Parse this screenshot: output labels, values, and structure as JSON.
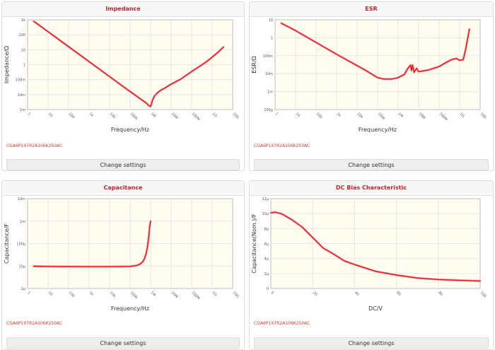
{
  "panels": [
    {
      "title": "Impedance",
      "part_number": "CGA6P1X7R2A106K250AC",
      "button_label": "Change settings"
    },
    {
      "title": "ESR",
      "part_number": "CGA6P1X7R2A106K250AC",
      "button_label": "Change settings"
    },
    {
      "title": "Capacitance",
      "part_number": "CGA6P1X7R2A106K250AC",
      "button_label": "Change settings"
    },
    {
      "title": "DC Bias Characteristic",
      "part_number": "CGA6P1X7R2A106K250AC",
      "button_label": "Change settings"
    }
  ],
  "colors": {
    "line": "#e8161e",
    "plot_bg": "#fffdf0",
    "grid": "#e6e6e6",
    "title": "#c0262f"
  },
  "chart_data": [
    {
      "type": "line",
      "title": "Impedance",
      "xlabel": "Frequency/Hz",
      "ylabel": "Impedance/Ω",
      "xscale": "log",
      "yscale": "log",
      "xlim": [
        1,
        10000000000
      ],
      "ylim": [
        0.001,
        1000
      ],
      "x_ticks": [
        1,
        10,
        100,
        1000,
        10000,
        100000,
        1000000,
        10000000,
        100000000,
        1000000000,
        10000000000
      ],
      "x_tick_labels": [
        "1",
        "10",
        "100",
        "1k",
        "10k",
        "100k",
        "1M",
        "10M",
        "100M",
        "1G",
        "10G"
      ],
      "y_ticks": [
        0.001,
        0.01,
        0.1,
        1,
        10,
        100,
        1000
      ],
      "y_tick_labels": [
        "1m",
        "10m",
        "100m",
        "1",
        "10",
        "100",
        "1k"
      ],
      "grid": true,
      "series": [
        {
          "x": [
            2,
            10,
            100,
            1000,
            10000,
            100000,
            300000,
            600000,
            800000,
            1000000,
            1100000,
            1300000,
            1600000,
            2000000,
            3000000,
            5000000,
            10000000,
            30000000,
            100000000,
            500000000,
            1000000000,
            2000000000,
            3500000000
          ],
          "y": [
            800,
            160,
            16,
            1.6,
            0.16,
            0.016,
            0.0055,
            0.0028,
            0.0019,
            0.0016,
            0.0025,
            0.005,
            0.0085,
            0.012,
            0.019,
            0.028,
            0.05,
            0.11,
            0.35,
            1.5,
            3.2,
            7,
            15
          ]
        }
      ]
    },
    {
      "type": "line",
      "title": "ESR",
      "xlabel": "Frequency/Hz",
      "ylabel": "ESR/Ω",
      "xscale": "log",
      "yscale": "log",
      "xlim": [
        1,
        10000000000
      ],
      "ylim": [
        0.0001,
        10
      ],
      "x_ticks": [
        1,
        10,
        100,
        1000,
        10000,
        100000,
        1000000,
        10000000,
        100000000,
        1000000000,
        10000000000
      ],
      "x_tick_labels": [
        "1",
        "10",
        "100",
        "1k",
        "10k",
        "100k",
        "1M",
        "10M",
        "100M",
        "1G",
        "10G"
      ],
      "y_ticks": [
        0.0001,
        0.001,
        0.01,
        0.1,
        1,
        10
      ],
      "y_tick_labels": [
        "100μ",
        "1m",
        "10m",
        "100m",
        "1",
        "10"
      ],
      "grid": true,
      "series": [
        {
          "x": [
            2,
            10,
            100,
            1000,
            10000,
            30000,
            100000,
            200000,
            500000,
            1000000,
            2000000,
            3000000,
            4000000,
            4500000,
            5000000,
            6000000,
            8000000,
            10000000,
            30000000,
            100000000,
            200000000,
            400000000,
            700000000,
            1000000000,
            1500000000,
            2000000000,
            3000000000
          ],
          "y": [
            6.5,
            2.5,
            0.55,
            0.12,
            0.028,
            0.014,
            0.006,
            0.005,
            0.005,
            0.006,
            0.009,
            0.02,
            0.03,
            0.015,
            0.03,
            0.012,
            0.02,
            0.013,
            0.016,
            0.025,
            0.04,
            0.06,
            0.07,
            0.055,
            0.06,
            0.25,
            3
          ]
        }
      ]
    },
    {
      "type": "line",
      "title": "Capacitance",
      "xlabel": "Frequency/Hz",
      "ylabel": "Capacitance/F",
      "xscale": "log",
      "yscale": "log",
      "xlim": [
        1,
        10000000000
      ],
      "ylim": [
        1e-06,
        0.01
      ],
      "x_ticks": [
        1,
        10,
        100,
        1000,
        10000,
        100000,
        1000000,
        10000000,
        100000000,
        1000000000,
        10000000000
      ],
      "x_tick_labels": [
        "1",
        "10",
        "100",
        "1k",
        "10k",
        "100k",
        "1M",
        "10M",
        "100M",
        "1G",
        "10G"
      ],
      "y_ticks": [
        1e-06,
        1e-05,
        0.0001,
        0.001,
        0.01
      ],
      "y_tick_labels": [
        "1μ",
        "10μ",
        "100μ",
        "1m",
        "10m"
      ],
      "grid": true,
      "series": [
        {
          "x": [
            2,
            10,
            100,
            1000,
            10000,
            100000,
            200000,
            300000,
            400000,
            500000,
            600000,
            700000,
            800000,
            900000,
            1000000
          ],
          "y": [
            9.8e-06,
            9.6e-06,
            9.5e-06,
            9.4e-06,
            9.4e-06,
            9.7e-06,
            1.05e-05,
            1.2e-05,
            1.5e-05,
            2.1e-05,
            3.5e-05,
            7e-05,
            0.00018,
            0.0006,
            0.001
          ]
        }
      ]
    },
    {
      "type": "line",
      "title": "DC Bias Characteristic",
      "xlabel": "DC/V",
      "ylabel": "Capacitance(Nom.)/F",
      "xscale": "linear",
      "yscale": "linear",
      "xlim": [
        0,
        100
      ],
      "ylim": [
        0,
        12
      ],
      "x_ticks": [
        0,
        20,
        40,
        60,
        80,
        100
      ],
      "x_tick_labels": [
        "0",
        "20",
        "40",
        "60",
        "80",
        "100"
      ],
      "y_ticks": [
        0,
        2,
        4,
        6,
        8,
        10,
        12
      ],
      "y_tick_labels": [
        "0",
        "2μ",
        "4μ",
        "6μ",
        "8μ",
        "10μ",
        "12μ"
      ],
      "grid": true,
      "series": [
        {
          "x": [
            0,
            2,
            5,
            10,
            15,
            20,
            25,
            30,
            35,
            40,
            50,
            60,
            70,
            80,
            90,
            100
          ],
          "y": [
            10.1,
            10.2,
            10.0,
            9.2,
            8.2,
            6.8,
            5.4,
            4.6,
            3.7,
            3.2,
            2.3,
            1.8,
            1.4,
            1.2,
            1.1,
            1.0
          ]
        }
      ]
    }
  ]
}
